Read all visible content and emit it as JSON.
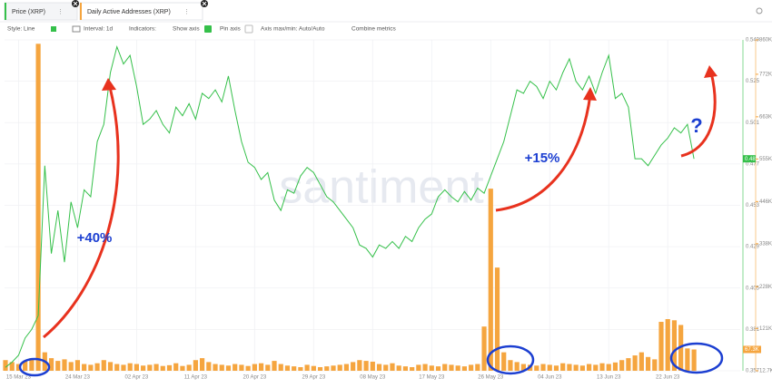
{
  "tabs": [
    "Price (XRP)",
    "Daily Active Addresses (XRP)"
  ],
  "toolbar": [
    "Style: Line",
    "Interval: 1d",
    "Indicators:",
    "Show axis",
    "Pin axis",
    "Axis max/min: Auto/Auto",
    "Combine metrics"
  ],
  "chart_data": {
    "type": "line",
    "watermark": "santiment",
    "grid": true,
    "categories": [
      null,
      null,
      "15 Mar 23",
      null,
      null,
      null,
      null,
      null,
      null,
      null,
      null,
      "24 Mar 23",
      null,
      null,
      null,
      null,
      null,
      null,
      null,
      null,
      "02 Apr 23",
      null,
      null,
      null,
      null,
      null,
      null,
      null,
      null,
      "11 Apr 23",
      null,
      null,
      null,
      null,
      null,
      null,
      null,
      null,
      "20 Apr 23",
      null,
      null,
      null,
      null,
      null,
      null,
      null,
      null,
      "29 Apr 23",
      null,
      null,
      null,
      null,
      null,
      null,
      null,
      null,
      "08 May 23",
      null,
      null,
      null,
      null,
      null,
      null,
      null,
      null,
      "17 May 23",
      null,
      null,
      null,
      null,
      null,
      null,
      null,
      null,
      "26 May 23",
      null,
      null,
      null,
      null,
      null,
      null,
      null,
      null,
      "04 Jun 23",
      null,
      null,
      null,
      null,
      null,
      null,
      null,
      null,
      "13 Jun 23",
      null,
      null,
      null,
      null,
      null,
      null,
      null,
      null,
      "22 Jun 23",
      null,
      null,
      null,
      null
    ],
    "ylim": [
      0.357,
      0.549
    ],
    "yticks": [
      0.357,
      0.381,
      0.405,
      0.429,
      0.453,
      0.477,
      0.501,
      0.525,
      0.549
    ],
    "y2lim": [
      12700,
      860000
    ],
    "y2ticks": [
      {
        "value": 12700,
        "label": "12.7K"
      },
      {
        "value": 121000,
        "label": "121K"
      },
      {
        "value": 228000,
        "label": "228K"
      },
      {
        "value": 338000,
        "label": "338K"
      },
      {
        "value": 446000,
        "label": "446K"
      },
      {
        "value": 555000,
        "label": "555K"
      },
      {
        "value": 663000,
        "label": "663K"
      },
      {
        "value": 772000,
        "label": "772K"
      },
      {
        "value": 860000,
        "label": "860K"
      }
    ],
    "series": [
      {
        "name": "Price (XRP)",
        "type": "line",
        "color": "#35c04a",
        "current_label": "0.48",
        "values": [
          0.359,
          0.362,
          0.366,
          0.376,
          0.381,
          0.389,
          0.476,
          0.425,
          0.45,
          0.42,
          0.455,
          0.44,
          0.462,
          0.458,
          0.49,
          0.5,
          0.53,
          0.545,
          0.535,
          0.54,
          0.522,
          0.5,
          0.503,
          0.508,
          0.5,
          0.495,
          0.51,
          0.505,
          0.512,
          0.503,
          0.518,
          0.515,
          0.52,
          0.513,
          0.528,
          0.508,
          0.49,
          0.478,
          0.475,
          0.468,
          0.472,
          0.456,
          0.45,
          0.462,
          0.46,
          0.47,
          0.475,
          0.472,
          0.465,
          0.458,
          0.455,
          0.45,
          0.445,
          0.44,
          0.43,
          0.428,
          0.423,
          0.43,
          0.428,
          0.432,
          0.428,
          0.435,
          0.432,
          0.44,
          0.445,
          0.448,
          0.458,
          0.462,
          0.458,
          0.455,
          0.461,
          0.456,
          0.463,
          0.46,
          0.47,
          0.48,
          0.49,
          0.505,
          0.52,
          0.518,
          0.525,
          0.522,
          0.515,
          0.525,
          0.52,
          0.53,
          0.538,
          0.525,
          0.52,
          0.528,
          0.518,
          0.53,
          0.54,
          0.515,
          0.518,
          0.51,
          0.48,
          0.48,
          0.476,
          0.482,
          0.488,
          0.492,
          0.498,
          0.495,
          0.5,
          0.48
        ]
      },
      {
        "name": "Daily Active Addresses (XRP)",
        "type": "bar",
        "axis": "y2",
        "color": "#f5a53f",
        "current_label": "67.3K",
        "values": [
          40000,
          35000,
          30000,
          38000,
          45000,
          850000,
          60000,
          45000,
          38000,
          42000,
          35000,
          40000,
          30000,
          28000,
          32000,
          40000,
          35000,
          30000,
          28000,
          32000,
          30000,
          26000,
          28000,
          30000,
          25000,
          27000,
          32000,
          25000,
          28000,
          40000,
          45000,
          35000,
          30000,
          28000,
          26000,
          30000,
          28000,
          25000,
          30000,
          32000,
          28000,
          38000,
          30000,
          26000,
          24000,
          22000,
          28000,
          25000,
          22000,
          24000,
          26000,
          28000,
          30000,
          35000,
          40000,
          38000,
          36000,
          30000,
          28000,
          32000,
          26000,
          24000,
          22000,
          28000,
          30000,
          26000,
          24000,
          30000,
          28000,
          26000,
          24000,
          28000,
          30000,
          126000,
          479000,
          277000,
          60000,
          40000,
          35000,
          30000,
          28000,
          26000,
          30000,
          28000,
          26000,
          32000,
          30000,
          28000,
          26000,
          30000,
          28000,
          32000,
          30000,
          34000,
          40000,
          45000,
          52000,
          60000,
          48000,
          42000,
          138000,
          145000,
          142000,
          130000,
          70000,
          67300
        ]
      }
    ],
    "annotations": [
      "+40%",
      "+15%",
      "?"
    ]
  }
}
